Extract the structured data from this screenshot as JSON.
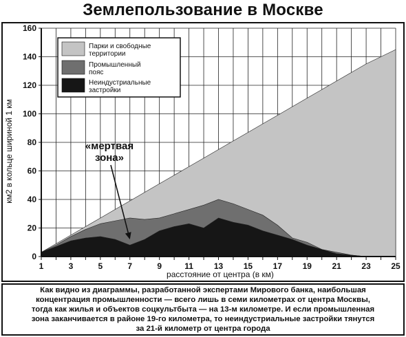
{
  "title": "Землепользование в Москве",
  "caption": "Как видно из диаграммы, разработанной экспертами Мирового банка, наибольшая\nконцентрация промышленности — всего лишь в семи километрах от центра Москвы,\nтогда как жилья и объектов соцкультбыта — на 13-м километре. И если промышленная\nзона заканчивается в районе 19-го километра, то неиндустриальные застройки тянутся\nза 21-й километр от центра города",
  "colors": {
    "parks": "#c4c4c4",
    "industrial": "#6f6f6f",
    "nonindustrial": "#161616"
  },
  "chart_data": {
    "type": "area",
    "title": "Землепользование в Москве",
    "xlabel": "расстояние от центра (в км)",
    "ylabel": "км2 в кольце шириной 1 км",
    "xlim": [
      1,
      25
    ],
    "ylim": [
      0,
      160
    ],
    "x_ticks": [
      "1",
      "3",
      "5",
      "7",
      "9",
      "11",
      "13",
      "15",
      "17",
      "19",
      "21",
      "23",
      "25"
    ],
    "y_ticks": [
      "0",
      "20",
      "40",
      "60",
      "80",
      "100",
      "120",
      "140",
      "160"
    ],
    "grid": true,
    "legend_position": "top-left",
    "x": [
      1,
      2,
      3,
      4,
      5,
      6,
      7,
      8,
      9,
      10,
      11,
      12,
      13,
      14,
      15,
      16,
      17,
      18,
      19,
      20,
      21,
      22,
      23,
      24,
      25
    ],
    "series": [
      {
        "name": "Парки и свободные территории",
        "color_key": "parks",
        "cumulative_top": [
          3,
          9,
          15,
          21,
          27,
          33,
          39,
          45,
          51,
          57,
          63,
          69,
          75,
          81,
          87,
          93,
          99,
          105,
          111,
          117,
          123,
          129,
          135,
          140,
          145
        ]
      },
      {
        "name": "Промышленный пояс",
        "color_key": "industrial",
        "cumulative_top": [
          3,
          8,
          14,
          19,
          23,
          25,
          27,
          26,
          27,
          30,
          33,
          36,
          40,
          37,
          33,
          29,
          22,
          13,
          10,
          5,
          3,
          1,
          0,
          0,
          0
        ]
      },
      {
        "name": "Неиндустриальные застройки",
        "color_key": "nonindustrial",
        "cumulative_top": [
          3,
          7,
          11,
          13,
          14,
          12,
          8,
          12,
          18,
          21,
          23,
          20,
          27,
          24,
          22,
          18,
          15,
          12,
          8,
          5,
          2,
          1,
          0,
          0,
          0
        ]
      }
    ],
    "annotation": {
      "text_lines": [
        "«мертвая",
        "зона»"
      ],
      "points_to": {
        "x": 7,
        "y": 12
      }
    }
  }
}
